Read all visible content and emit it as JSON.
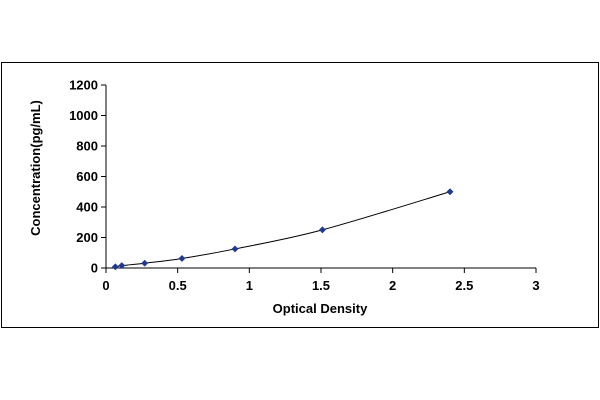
{
  "chart_data": {
    "type": "scatter",
    "title": "",
    "xlabel": "Optical Density",
    "ylabel": "Concentration(pg/mL)",
    "xlim": [
      0,
      3
    ],
    "ylim": [
      0,
      1200
    ],
    "x_ticks": [
      "0",
      "0.5",
      "1",
      "1.5",
      "2",
      "2.5",
      "3"
    ],
    "y_ticks": [
      "0",
      "200",
      "400",
      "600",
      "800",
      "1000",
      "1200"
    ],
    "grid": false,
    "legend": "none",
    "trendline": "smooth curve through points",
    "series": [
      {
        "color": "#1f3a93",
        "x": [
          0.065,
          0.11,
          0.27,
          0.53,
          0.9,
          1.51,
          2.4
        ],
        "y": [
          7.8,
          15.6,
          31.25,
          62.5,
          125,
          250,
          500
        ]
      }
    ]
  }
}
